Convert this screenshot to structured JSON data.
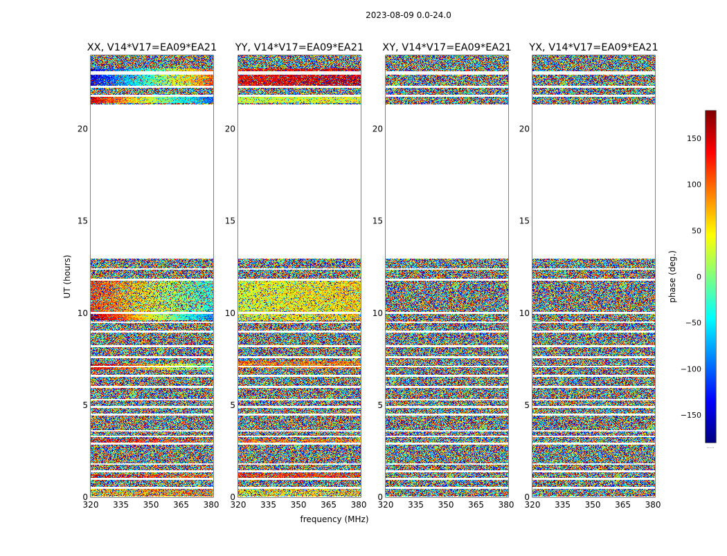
{
  "chart_data": {
    "type": "heatmap",
    "suptitle": "2023-08-09 0.0-24.0",
    "xlabel": "frequency (MHz)",
    "ylabel": "UT (hours)",
    "xlim": [
      320,
      381
    ],
    "ylim": [
      0,
      24
    ],
    "xticks": [
      "320",
      "335",
      "350",
      "365",
      "380"
    ],
    "yticks": [
      "0",
      "5",
      "10",
      "15",
      "20"
    ],
    "panels": [
      {
        "title": "XX, V14*V17=EA09*EA21",
        "coherent": [
          {
            "t0": 0.05,
            "t1": 0.45,
            "phase0": 60,
            "phase1": 100,
            "strength": 0.45
          },
          {
            "t0": 1.0,
            "t1": 1.25,
            "phase0": 150,
            "phase1": 90,
            "strength": 0.55
          },
          {
            "t0": 2.95,
            "t1": 3.15,
            "phase0": 160,
            "phase1": 100,
            "strength": 0.5
          },
          {
            "t0": 6.9,
            "t1": 7.25,
            "phase0": 150,
            "phase1": -20,
            "strength": 0.7
          },
          {
            "t0": 9.6,
            "t1": 10.0,
            "phase0": 170,
            "phase1": -100,
            "strength": 0.85
          },
          {
            "t0": 10.0,
            "t1": 11.8,
            "phase0": 120,
            "phase1": -40,
            "strength": 0.55
          },
          {
            "t0": 21.4,
            "t1": 21.8,
            "phase0": 150,
            "phase1": -110,
            "strength": 0.85
          },
          {
            "t0": 22.3,
            "t1": 23.3,
            "phase0": -150,
            "phase1": 110,
            "strength": 0.75
          }
        ]
      },
      {
        "title": "YY, V14*V17=EA09*EA21",
        "coherent": [
          {
            "t0": 0.05,
            "t1": 0.45,
            "phase0": 40,
            "phase1": 60,
            "strength": 0.45
          },
          {
            "t0": 1.0,
            "t1": 1.3,
            "phase0": 130,
            "phase1": 120,
            "strength": 0.6
          },
          {
            "t0": 2.95,
            "t1": 3.15,
            "phase0": 100,
            "phase1": 80,
            "strength": 0.5
          },
          {
            "t0": 7.0,
            "t1": 7.4,
            "phase0": 90,
            "phase1": 90,
            "strength": 0.65
          },
          {
            "t0": 9.6,
            "t1": 10.0,
            "phase0": 30,
            "phase1": 60,
            "strength": 0.6
          },
          {
            "t0": 10.0,
            "t1": 11.8,
            "phase0": 30,
            "phase1": 60,
            "strength": 0.7
          },
          {
            "t0": 21.4,
            "t1": 21.8,
            "phase0": 20,
            "phase1": 40,
            "strength": 0.85
          },
          {
            "t0": 22.3,
            "t1": 23.3,
            "phase0": 140,
            "phase1": 160,
            "strength": 0.75
          }
        ]
      },
      {
        "title": "XY, V14*V17=EA09*EA21",
        "coherent": []
      },
      {
        "title": "YX, V14*V17=EA09*EA21",
        "coherent": []
      }
    ],
    "data_blocks": [
      [
        0.05,
        0.45
      ],
      [
        0.55,
        0.95
      ],
      [
        1.05,
        1.35
      ],
      [
        1.45,
        1.75
      ],
      [
        1.85,
        2.85
      ],
      [
        2.95,
        3.25
      ],
      [
        3.35,
        3.55
      ],
      [
        3.65,
        4.45
      ],
      [
        4.55,
        4.85
      ],
      [
        4.95,
        5.25
      ],
      [
        5.35,
        5.95
      ],
      [
        6.05,
        6.55
      ],
      [
        6.65,
        7.05
      ],
      [
        7.15,
        7.55
      ],
      [
        7.65,
        8.15
      ],
      [
        8.25,
        8.95
      ],
      [
        9.05,
        9.45
      ],
      [
        9.55,
        9.95
      ],
      [
        10.05,
        11.75
      ],
      [
        11.85,
        12.35
      ],
      [
        12.45,
        12.95
      ],
      [
        21.35,
        21.75
      ],
      [
        21.85,
        22.25
      ],
      [
        22.35,
        22.95
      ],
      [
        23.15,
        24.0
      ]
    ],
    "colorbar": {
      "label": "phase (deg.)",
      "range": [
        -180,
        180
      ],
      "ticks": [
        "150",
        "100",
        "50",
        "0",
        "−50",
        "−100",
        "−150"
      ],
      "tick_values": [
        150,
        100,
        50,
        0,
        -50,
        -100,
        -150
      ],
      "colormap": "jet",
      "footnote": "....."
    }
  }
}
